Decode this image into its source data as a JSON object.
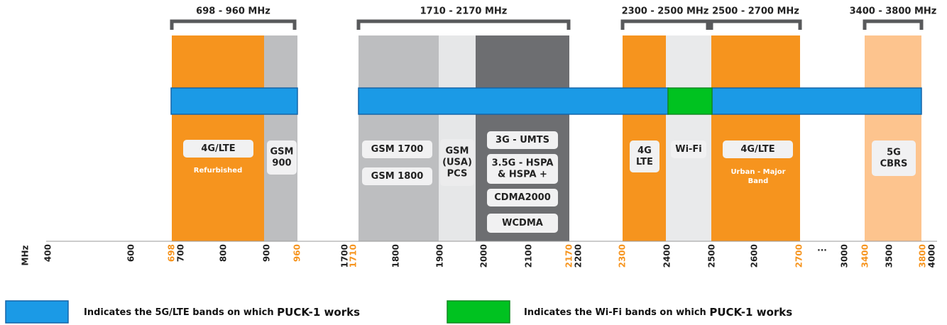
{
  "brackets": [
    "698 - 960 MHz",
    "1710 - 2170 MHz",
    "2300 - 2500 MHz",
    "2500 - 2700 MHz",
    "3400 - 3800 MHz"
  ],
  "bands": [
    {
      "lines": [
        "4G/LTE"
      ],
      "sub": [
        "Refurbished"
      ]
    },
    {
      "lines": [
        "GSM",
        "900"
      ]
    },
    {
      "lines": [
        "GSM 1700"
      ]
    },
    {
      "lines": [
        "GSM 1800"
      ]
    },
    {
      "lines": [
        "GSM",
        "(USA)",
        "PCS"
      ]
    },
    {
      "lines": [
        "3G - UMTS"
      ]
    },
    {
      "lines": [
        "3.5G - HSPA",
        "& HSPA +"
      ]
    },
    {
      "lines": [
        "CDMA2000"
      ]
    },
    {
      "lines": [
        "WCDMA"
      ]
    },
    {
      "lines": [
        "4G",
        "LTE"
      ]
    },
    {
      "lines": [
        "Wi-Fi"
      ]
    },
    {
      "lines": [
        "4G/LTE"
      ],
      "sub": [
        "Urban - Major",
        "Band"
      ]
    },
    {
      "lines": [
        "5G",
        "CBRS"
      ]
    }
  ],
  "axis": {
    "unit": "MHz",
    "ticks": [
      "400",
      "600",
      "698",
      "700",
      "800",
      "900",
      "960",
      "1700",
      "1710",
      "1800",
      "1900",
      "2000",
      "2100",
      "2170",
      "2200",
      "2300",
      "2400",
      "2500",
      "2600",
      "2700",
      "...",
      "3000",
      "3400",
      "3500",
      "3800",
      "4000"
    ]
  },
  "legend": [
    {
      "text": "Indicates the 5G/LTE bands on which",
      "emphasis": "PUCK-1 works"
    },
    {
      "text": "Indicates the Wi-Fi bands on which",
      "emphasis": "PUCK-1 works"
    }
  ]
}
